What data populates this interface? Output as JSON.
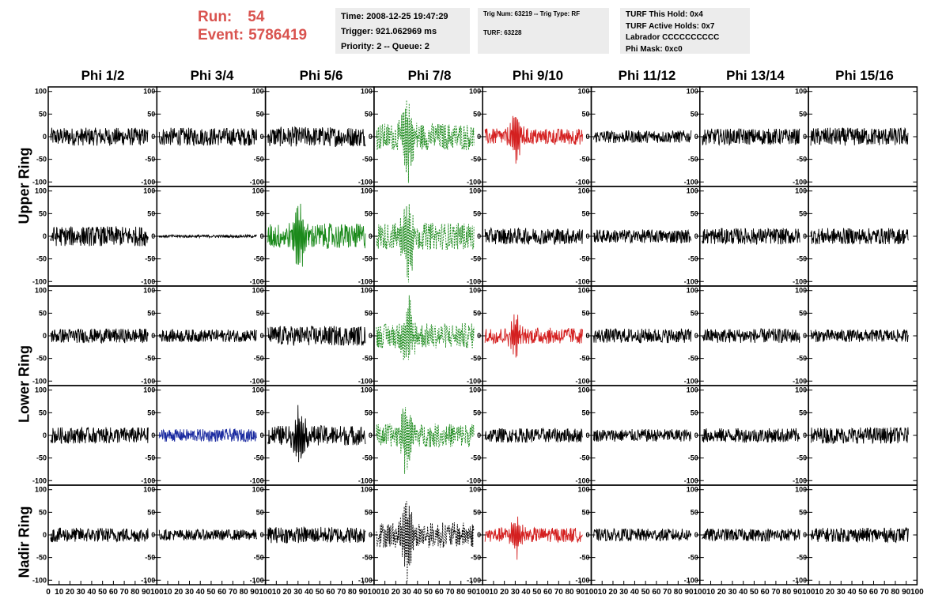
{
  "header": {
    "run_label": "Run:",
    "run_value": "54",
    "event_label": "Event:",
    "event_value": "5786419"
  },
  "info_time": {
    "time": "Time: 2008-12-25 19:47:29",
    "trigger": "Trigger: 921.062969 ms",
    "priority": "Priority: 2 -- Queue: 2"
  },
  "info_trig": {
    "trig": "Trig Num: 63219 -- Trig Type: RF",
    "turf": "TURF: 63228"
  },
  "info_turf": {
    "hold": "TURF This Hold: 0x4",
    "active": "TURF Active Holds: 0x7",
    "labrador": "Labrador CCCCCCCCCC",
    "phimask": "Phi Mask: 0xc0"
  },
  "columns": [
    "Phi 1/2",
    "Phi 3/4",
    "Phi 5/6",
    "Phi 7/8",
    "Phi 9/10",
    "Phi 11/12",
    "Phi 13/14",
    "Phi 15/16"
  ],
  "rings": [
    "Upper Ring",
    "Lower Ring",
    "Nadir Ring"
  ],
  "colors": {
    "black": "#000000",
    "green": "#1c8a1c",
    "red": "#d42020",
    "blue": "#1a2aa0",
    "header_red": "#d9534f",
    "info_bg": "#ececec"
  },
  "chart_data": {
    "type": "line",
    "x_ticks": [
      0,
      10,
      20,
      30,
      40,
      50,
      60,
      70,
      80,
      90,
      100
    ],
    "y_ticks": [
      -100,
      -50,
      0,
      50,
      100
    ],
    "xlim": [
      0,
      100
    ],
    "ylim": [
      -110,
      110
    ],
    "rows": [
      {
        "ring": "Upper Ring",
        "panels": [
          {
            "color": "black",
            "amp": 20,
            "style": "solid"
          },
          {
            "color": "black",
            "amp": 20,
            "style": "solid"
          },
          {
            "color": "black",
            "amp": 22,
            "style": "solid"
          },
          {
            "color": "green",
            "amp": 30,
            "burst": 95,
            "style": "dashed"
          },
          {
            "color": "red",
            "amp": 18,
            "burst": 60,
            "style": "solid"
          },
          {
            "color": "black",
            "amp": 14,
            "style": "solid"
          },
          {
            "color": "black",
            "amp": 18,
            "style": "solid"
          },
          {
            "color": "black",
            "amp": 20,
            "style": "solid"
          }
        ]
      },
      {
        "ring": "Upper Ring",
        "panels": [
          {
            "color": "black",
            "amp": 22,
            "style": "solid"
          },
          {
            "color": "black",
            "amp": 3,
            "style": "solid"
          },
          {
            "color": "green",
            "amp": 28,
            "burst": 90,
            "style": "solid"
          },
          {
            "color": "green",
            "amp": 30,
            "burst": 100,
            "style": "dashed"
          },
          {
            "color": "black",
            "amp": 18,
            "style": "solid"
          },
          {
            "color": "black",
            "amp": 15,
            "style": "solid"
          },
          {
            "color": "black",
            "amp": 18,
            "style": "solid"
          },
          {
            "color": "black",
            "amp": 18,
            "style": "solid"
          }
        ]
      },
      {
        "ring": "Lower Ring",
        "panels": [
          {
            "color": "black",
            "amp": 16,
            "style": "solid"
          },
          {
            "color": "black",
            "amp": 14,
            "style": "solid"
          },
          {
            "color": "black",
            "amp": 22,
            "style": "solid"
          },
          {
            "color": "green",
            "amp": 28,
            "burst": 80,
            "style": "dashed"
          },
          {
            "color": "red",
            "amp": 18,
            "burst": 50,
            "style": "solid"
          },
          {
            "color": "black",
            "amp": 16,
            "style": "solid"
          },
          {
            "color": "black",
            "amp": 16,
            "style": "solid"
          },
          {
            "color": "black",
            "amp": 14,
            "style": "solid"
          }
        ]
      },
      {
        "ring": "Lower Ring",
        "panels": [
          {
            "color": "black",
            "amp": 18,
            "style": "solid"
          },
          {
            "color": "blue",
            "amp": 14,
            "style": "solid"
          },
          {
            "color": "black",
            "amp": 22,
            "burst": 60,
            "style": "solid"
          },
          {
            "color": "green",
            "amp": 26,
            "burst": 90,
            "style": "dashed"
          },
          {
            "color": "black",
            "amp": 16,
            "style": "solid"
          },
          {
            "color": "black",
            "amp": 14,
            "style": "solid"
          },
          {
            "color": "black",
            "amp": 16,
            "style": "solid"
          },
          {
            "color": "black",
            "amp": 18,
            "style": "solid"
          }
        ]
      },
      {
        "ring": "Nadir Ring",
        "panels": [
          {
            "color": "black",
            "amp": 16,
            "style": "solid"
          },
          {
            "color": "black",
            "amp": 12,
            "style": "solid"
          },
          {
            "color": "black",
            "amp": 18,
            "style": "solid"
          },
          {
            "color": "black",
            "amp": 28,
            "burst": 100,
            "style": "dashed"
          },
          {
            "color": "red",
            "amp": 16,
            "burst": 45,
            "style": "solid"
          },
          {
            "color": "black",
            "amp": 14,
            "style": "solid"
          },
          {
            "color": "black",
            "amp": 14,
            "style": "solid"
          },
          {
            "color": "black",
            "amp": 16,
            "style": "solid"
          }
        ]
      }
    ]
  }
}
